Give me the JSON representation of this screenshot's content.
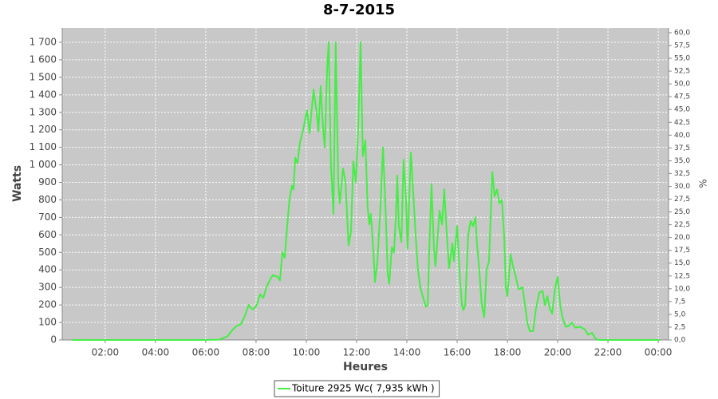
{
  "chart_data": {
    "type": "line",
    "title": "8-7-2015",
    "x_label": "Heures",
    "y_label": "Watts",
    "y2_label": "%",
    "x": [
      0.67,
      5.9,
      6.54,
      6.86,
      7.08,
      7.24,
      7.4,
      7.56,
      7.71,
      7.81,
      7.9,
      8.03,
      8.16,
      8.29,
      8.41,
      8.54,
      8.67,
      8.86,
      8.95,
      9.05,
      9.14,
      9.24,
      9.33,
      9.43,
      9.49,
      9.56,
      9.65,
      9.75,
      9.87,
      10.03,
      10.13,
      10.29,
      10.41,
      10.48,
      10.57,
      10.67,
      10.73,
      10.83,
      10.89,
      10.98,
      11.08,
      11.17,
      11.27,
      11.33,
      11.46,
      11.56,
      11.68,
      11.78,
      11.87,
      11.97,
      12.06,
      12.16,
      12.25,
      12.35,
      12.44,
      12.51,
      12.57,
      12.67,
      12.73,
      12.83,
      12.95,
      13.05,
      13.14,
      13.24,
      13.3,
      13.4,
      13.49,
      13.56,
      13.62,
      13.68,
      13.78,
      13.87,
      13.97,
      14.03,
      14.16,
      14.25,
      14.35,
      14.44,
      14.54,
      14.63,
      14.76,
      14.83,
      14.89,
      14.98,
      15.08,
      15.14,
      15.24,
      15.3,
      15.4,
      15.49,
      15.59,
      15.68,
      15.81,
      15.87,
      16.0,
      16.1,
      16.19,
      16.25,
      16.32,
      16.44,
      16.54,
      16.63,
      16.73,
      16.79,
      16.89,
      16.98,
      17.08,
      17.17,
      17.27,
      17.4,
      17.49,
      17.59,
      17.68,
      17.78,
      17.87,
      17.94,
      18.0,
      18.13,
      18.22,
      18.32,
      18.44,
      18.6,
      18.7,
      18.79,
      18.89,
      19.02,
      19.14,
      19.27,
      19.4,
      19.49,
      19.59,
      19.68,
      19.78,
      19.9,
      20.0,
      20.1,
      20.19,
      20.32,
      20.44,
      20.57,
      20.7,
      20.89,
      21.08,
      21.21,
      21.37,
      21.49,
      21.62,
      24.06
    ],
    "series": [
      {
        "name": "Toiture 2925 Wc( 7,935 kWh )",
        "color": "#44ee44",
        "values": [
          0,
          0,
          2,
          20,
          60,
          80,
          90,
          140,
          200,
          180,
          175,
          200,
          260,
          240,
          300,
          340,
          370,
          360,
          340,
          500,
          470,
          650,
          800,
          880,
          860,
          1040,
          1010,
          1130,
          1200,
          1310,
          1180,
          1430,
          1300,
          1190,
          1450,
          1200,
          1100,
          1550,
          1700,
          1000,
          720,
          1700,
          900,
          780,
          980,
          900,
          540,
          620,
          1020,
          900,
          1200,
          1700,
          1050,
          1140,
          760,
          660,
          720,
          500,
          330,
          450,
          760,
          1100,
          800,
          380,
          320,
          530,
          500,
          700,
          940,
          650,
          560,
          1030,
          800,
          520,
          1070,
          850,
          600,
          400,
          300,
          250,
          190,
          200,
          500,
          890,
          520,
          420,
          620,
          740,
          660,
          860,
          600,
          410,
          550,
          450,
          650,
          380,
          200,
          170,
          200,
          600,
          680,
          650,
          700,
          550,
          380,
          200,
          130,
          400,
          450,
          960,
          820,
          860,
          780,
          800,
          600,
          300,
          250,
          490,
          420,
          370,
          290,
          300,
          200,
          100,
          50,
          50,
          180,
          270,
          280,
          200,
          250,
          180,
          150,
          300,
          360,
          200,
          130,
          75,
          80,
          100,
          70,
          75,
          60,
          30,
          40,
          10,
          0,
          0
        ]
      }
    ],
    "xlim": [
      0.29,
      24.41
    ],
    "xticks": [
      {
        "value": 2,
        "label": "02:00"
      },
      {
        "value": 4,
        "label": "04:00"
      },
      {
        "value": 6,
        "label": "06:00"
      },
      {
        "value": 8,
        "label": "08:00"
      },
      {
        "value": 10,
        "label": "10:00"
      },
      {
        "value": 12,
        "label": "12:00"
      },
      {
        "value": 14,
        "label": "14:00"
      },
      {
        "value": 16,
        "label": "16:00"
      },
      {
        "value": 18,
        "label": "18:00"
      },
      {
        "value": 20,
        "label": "20:00"
      },
      {
        "value": 22,
        "label": "22:00"
      },
      {
        "value": 24,
        "label": "00:00"
      }
    ],
    "ylim": [
      0,
      1782
    ],
    "yticks": [
      0,
      100,
      200,
      300,
      400,
      500,
      600,
      700,
      800,
      900,
      {
        "value": 1000,
        "label": "1 000"
      },
      {
        "value": 1100,
        "label": "1 100"
      },
      {
        "value": 1200,
        "label": "1 200"
      },
      {
        "value": 1300,
        "label": "1 300"
      },
      {
        "value": 1400,
        "label": "1 400"
      },
      {
        "value": 1500,
        "label": "1 500"
      },
      {
        "value": 1600,
        "label": "1 600"
      },
      {
        "value": 1700,
        "label": "1 700"
      }
    ],
    "y2lim": [
      0,
      60.93
    ],
    "y2ticks": [
      {
        "value": 0,
        "label": "0,0"
      },
      {
        "value": 2.5,
        "label": "2,5"
      },
      {
        "value": 5,
        "label": "5,0"
      },
      {
        "value": 7.5,
        "label": "7,5"
      },
      {
        "value": 10,
        "label": "10,0"
      },
      {
        "value": 12.5,
        "label": "12,5"
      },
      {
        "value": 15,
        "label": "15,0"
      },
      {
        "value": 17.5,
        "label": "17,5"
      },
      {
        "value": 20,
        "label": "20,0"
      },
      {
        "value": 22.5,
        "label": "22,5"
      },
      {
        "value": 25,
        "label": "25,0"
      },
      {
        "value": 27.5,
        "label": "27,5"
      },
      {
        "value": 30,
        "label": "30,0"
      },
      {
        "value": 32.5,
        "label": "32,5"
      },
      {
        "value": 35,
        "label": "35,0"
      },
      {
        "value": 37.5,
        "label": "37,5"
      },
      {
        "value": 40,
        "label": "40,0"
      },
      {
        "value": 42.5,
        "label": "42,5"
      },
      {
        "value": 45,
        "label": "45,0"
      },
      {
        "value": 47.5,
        "label": "47,5"
      },
      {
        "value": 50,
        "label": "50,0"
      },
      {
        "value": 52.5,
        "label": "52,5"
      },
      {
        "value": 55,
        "label": "55,0"
      },
      {
        "value": 57.5,
        "label": "57,5"
      },
      {
        "value": 60,
        "label": "60,0"
      }
    ],
    "grid": true,
    "legend": "bottom"
  }
}
